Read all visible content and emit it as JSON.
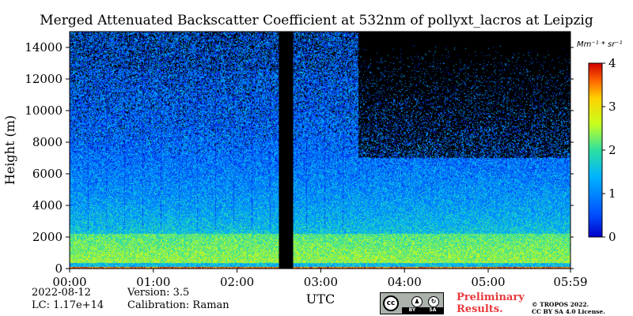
{
  "chart_data": {
    "type": "heatmap",
    "title": "Merged Attenuated Backscatter Coefficient at 532nm of pollyxt_lacros at Leipzig",
    "xlabel": "UTC",
    "ylabel": "Height (m)",
    "x_range_hours": [
      0,
      5.983
    ],
    "y_range_m": [
      0,
      15000
    ],
    "x_tick_labels": [
      "00:00",
      "01:00",
      "02:00",
      "03:00",
      "04:00",
      "05:00",
      "05:59"
    ],
    "x_tick_hours": [
      0,
      1,
      2,
      3,
      4,
      5,
      5.983
    ],
    "y_ticks": [
      0,
      2000,
      4000,
      6000,
      8000,
      10000,
      12000,
      14000
    ],
    "y_tick_labels": [
      "0",
      "2000",
      "4000",
      "6000",
      "8000",
      "10000",
      "12000",
      "14000"
    ],
    "colorbar": {
      "unit_label": "Mm⁻¹ * sr⁻¹",
      "min": 0,
      "max": 4,
      "ticks": [
        0,
        1,
        2,
        3,
        4
      ],
      "tick_labels": [
        "0",
        "1",
        "2",
        "3",
        "4"
      ]
    },
    "no_data_interval_hours": [
      2.5,
      2.67
    ],
    "boundary_layer_top_m": 2200,
    "overlap_layer_top_m": 350
  },
  "footer": {
    "date": "2022-08-12",
    "lc": "LC: 1.17e+14",
    "version": "Version: 3.5",
    "calibration": "Calibration: Raman",
    "preliminary_line1": "Preliminary",
    "preliminary_line2": "Results.",
    "copyright_line1": "© TROPOS 2022.",
    "copyright_line2": "CC BY SA 4.0 License.",
    "license_badge": {
      "cc": "cc",
      "by": "BY",
      "sa": "SA"
    }
  }
}
